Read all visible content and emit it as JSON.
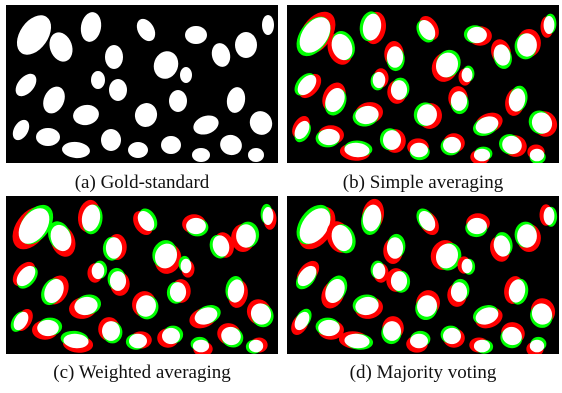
{
  "figure": {
    "panels": [
      {
        "id": "a",
        "caption": "(a) Gold-standard",
        "style": "gold"
      },
      {
        "id": "b",
        "caption": "(b) Simple averaging",
        "style": "overlay1"
      },
      {
        "id": "c",
        "caption": "(c) Weighted averaging",
        "style": "overlay2"
      },
      {
        "id": "d",
        "caption": "(d) Majority voting",
        "style": "overlay3"
      }
    ]
  },
  "colors": {
    "background": "#000000",
    "true_positive": "#ffffff",
    "false_positive": "#ff0000",
    "false_negative": "#00ff00"
  }
}
